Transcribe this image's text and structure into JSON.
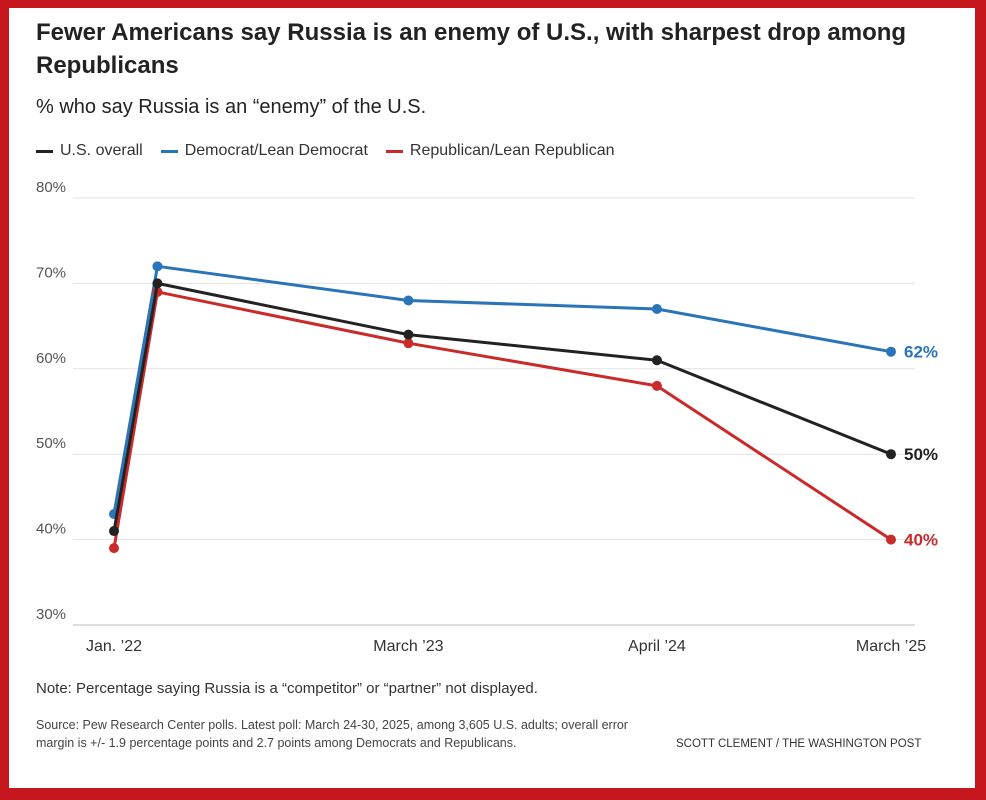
{
  "title": "Fewer Americans say Russia is an enemy of U.S., with sharpest drop among Republicans",
  "subtitle": "% who say Russia is an “enemy” of the U.S.",
  "note": "Note: Percentage saying Russia is a “competitor” or “partner” not displayed.",
  "source": "Source: Pew Research Center polls. Latest poll: March 24-30, 2025, among 3,605 U.S. adults; overall error margin is +/- 1.9 percentage points and 2.7 points among Democrats and Republicans.",
  "credit": "SCOTT CLEMENT / THE WASHINGTON POST",
  "colors": {
    "overall": "#222222",
    "democrat": "#2b74b8",
    "republican": "#c92a2a",
    "grid": "#e2e2e2",
    "frame": "#c4161c"
  },
  "chart_data": {
    "type": "line",
    "title": "Fewer Americans say Russia is an enemy of U.S., with sharpest drop among Republicans",
    "subtitle": "% who say Russia is an “enemy” of the U.S.",
    "xlabel": "",
    "ylabel": "",
    "ylim": [
      30,
      80
    ],
    "yticks": [
      30,
      40,
      50,
      60,
      70,
      80
    ],
    "ytick_labels": [
      "30%",
      "40%",
      "50%",
      "60%",
      "70%",
      "80%"
    ],
    "xlim": [
      2022.0,
      2025.22
    ],
    "x_tick_labels": [
      {
        "x": 2022.0,
        "label": "Jan. ’22"
      },
      {
        "x": 2023.22,
        "label": "March ’23"
      },
      {
        "x": 2024.25,
        "label": "April ’24"
      },
      {
        "x": 2025.22,
        "label": "March ’25"
      }
    ],
    "x": [
      2022.0,
      2022.18,
      2023.22,
      2024.25,
      2025.22
    ],
    "grid": true,
    "legend_position": "top-left",
    "series": [
      {
        "name": "U.S. overall",
        "key": "overall",
        "values": [
          41,
          70,
          64,
          61,
          50
        ],
        "end_label": "50%"
      },
      {
        "name": "Democrat/Lean Democrat",
        "key": "democrat",
        "values": [
          43,
          72,
          68,
          67,
          62
        ],
        "end_label": "62%"
      },
      {
        "name": "Republican/Lean Republican",
        "key": "republican",
        "values": [
          39,
          69,
          63,
          58,
          40
        ],
        "end_label": "40%"
      }
    ]
  }
}
